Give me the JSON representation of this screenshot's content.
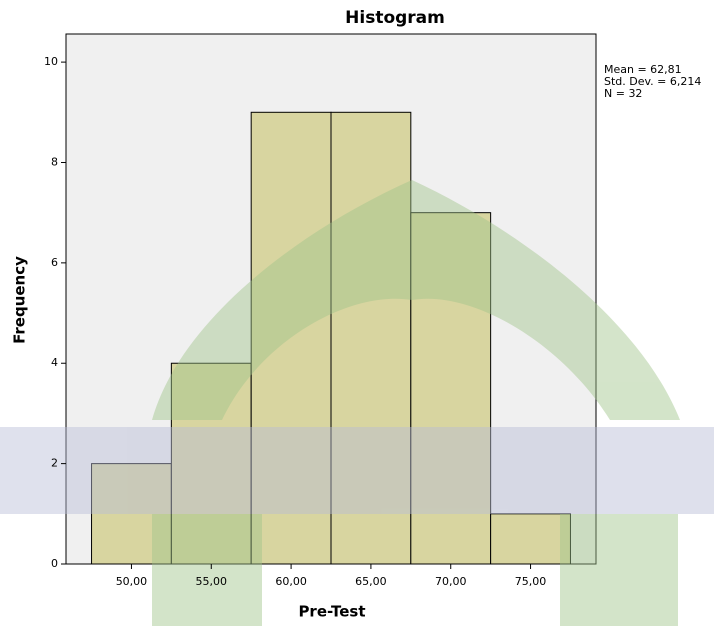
{
  "chart_data": {
    "type": "histogram",
    "title": "Histogram",
    "x_label": "Pre-Test",
    "y_label": "Frequency",
    "bins": [
      47.5,
      52.5,
      57.5,
      62.5,
      67.5,
      72.5,
      77.5
    ],
    "counts": [
      2,
      4,
      9,
      9,
      7,
      1
    ],
    "color": "#d8d5a0",
    "xlim": [
      45.9,
      79.1
    ],
    "xticks": [
      {
        "value": 50,
        "label": "50,00"
      },
      {
        "value": 55,
        "label": "55,00"
      },
      {
        "value": 60,
        "label": "60,00"
      },
      {
        "value": 65,
        "label": "65,00"
      },
      {
        "value": 70,
        "label": "70,00"
      },
      {
        "value": 75,
        "label": "75,00"
      }
    ],
    "ylim": [
      0,
      10.56
    ],
    "yticks": [
      0,
      2,
      4,
      6,
      8,
      10
    ],
    "annotations": [
      "Mean = 62,81",
      "Std. Dev. = 6,214",
      "N = 32"
    ]
  }
}
